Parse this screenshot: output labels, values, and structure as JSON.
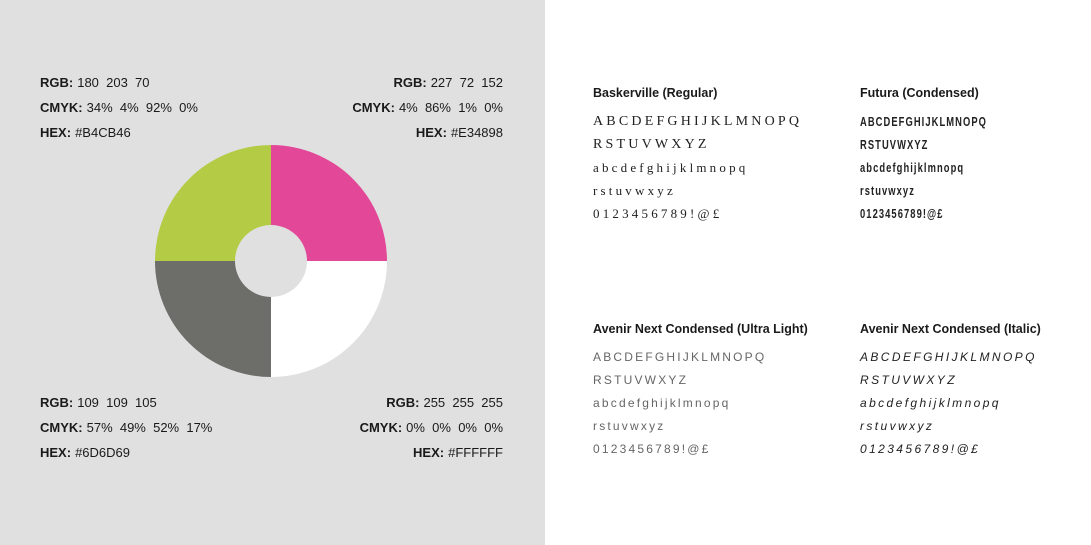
{
  "colors": [
    {
      "rgb_label": "RGB:",
      "rgb": "180  203  70",
      "cmyk_label": "CMYK:",
      "cmyk": "34%  4%  92%  0%",
      "hex_label": "HEX:",
      "hex": "#B4CB46"
    },
    {
      "rgb_label": "RGB:",
      "rgb": "227  72  152",
      "cmyk_label": "CMYK:",
      "cmyk": "4%  86%  1%  0%",
      "hex_label": "HEX:",
      "hex": "#E34898"
    },
    {
      "rgb_label": "RGB:",
      "rgb": "109  109  105",
      "cmyk_label": "CMYK:",
      "cmyk": "57%  49%  52%  17%",
      "hex_label": "HEX:",
      "hex": "#6D6D69"
    },
    {
      "rgb_label": "RGB:",
      "rgb": "255  255  255",
      "cmyk_label": "CMYK:",
      "cmyk": "0%  0%  0%  0%",
      "hex_label": "HEX:",
      "hex": "#FFFFFF"
    }
  ],
  "fonts": [
    {
      "name": "Baskerville (Regular)",
      "lines": [
        "ABCDEFGHIJKLMNOPQ",
        "RSTUVWXYZ",
        "abcdefghijklmnopq",
        "rstuvwxyz",
        "0123456789!@£"
      ]
    },
    {
      "name": "Futura (Condensed)",
      "lines": [
        "ABCDEFGHIJKLMNOPQ",
        "RSTUVWXYZ",
        "abcdefghijklmnopq",
        "rstuvwxyz",
        "0123456789!@£"
      ]
    },
    {
      "name": "Avenir Next Condensed (Ultra Light)",
      "lines": [
        "ABCDEFGHIJKLMNOPQ",
        "RSTUVWXYZ",
        "abcdefghijklmnopq",
        "rstuvwxyz",
        "0123456789!@£"
      ]
    },
    {
      "name": "Avenir Next Condensed (Italic)",
      "lines": [
        "ABCDEFGHIJKLMNOPQ",
        "RSTUVWXYZ",
        "abcdefghijklmnopq",
        "rstuvwxyz",
        "0123456789!@£"
      ]
    }
  ]
}
